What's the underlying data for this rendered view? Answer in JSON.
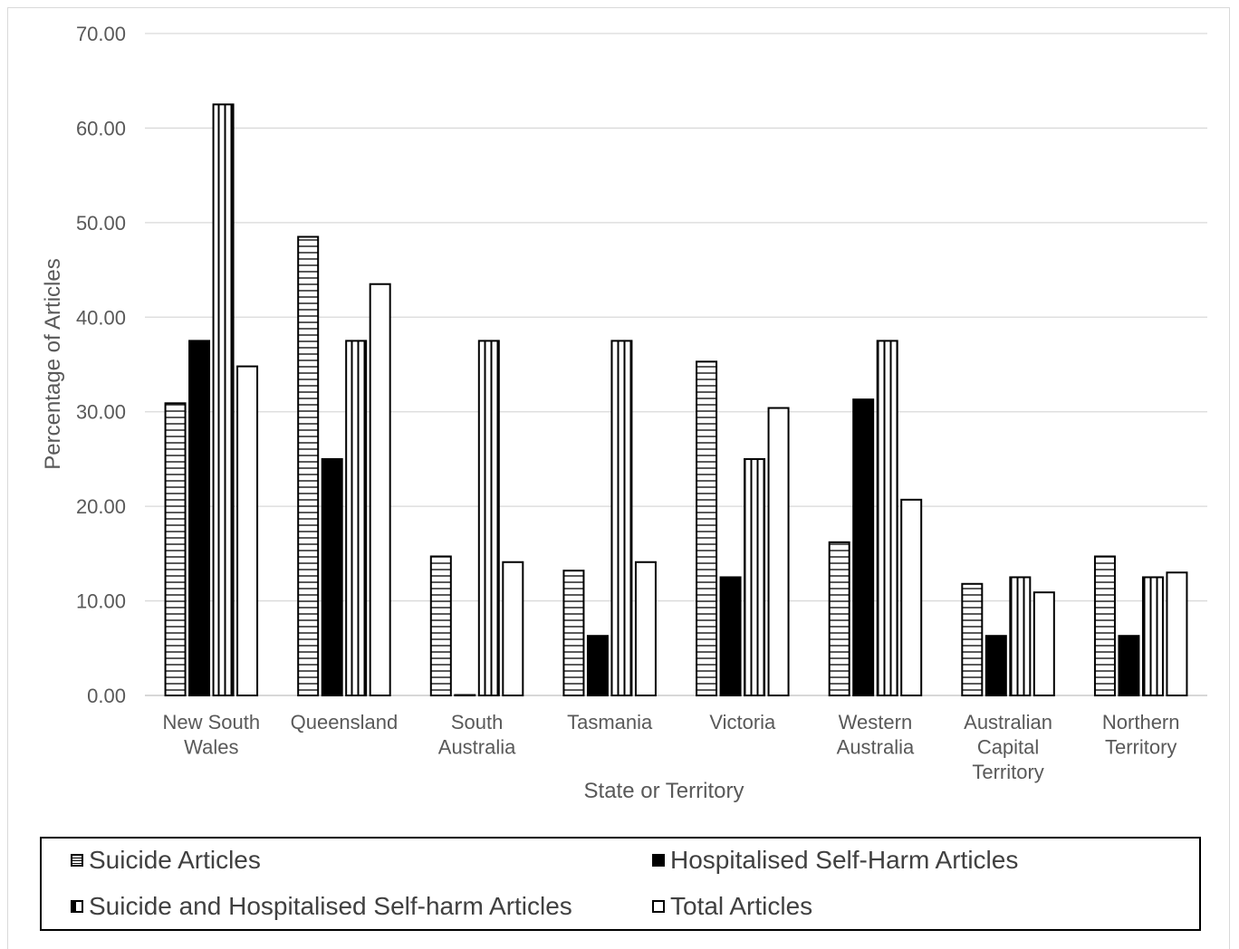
{
  "chart_data": {
    "type": "bar",
    "title": "",
    "xlabel": "State or Territory",
    "ylabel": "Percentage of Articles",
    "ylim": [
      0,
      70
    ],
    "yticks": [
      "0.00",
      "10.00",
      "20.00",
      "30.00",
      "40.00",
      "50.00",
      "60.00",
      "70.00"
    ],
    "grid": true,
    "legend_position": "bottom",
    "categories": [
      [
        "New South",
        "Wales"
      ],
      [
        "Queensland"
      ],
      [
        "South",
        "Australia"
      ],
      [
        "Tasmania"
      ],
      [
        "Victoria"
      ],
      [
        "Western",
        "Australia"
      ],
      [
        "Australian",
        "Capital",
        "Territory"
      ],
      [
        "Northern",
        "Territory"
      ]
    ],
    "series": [
      {
        "name": "Suicide Articles",
        "pattern": "hlines",
        "values": [
          30.9,
          48.5,
          14.7,
          13.2,
          35.3,
          16.2,
          11.8,
          14.7
        ]
      },
      {
        "name": "Hospitalised Self-Harm Articles",
        "pattern": "solid",
        "values": [
          37.5,
          25.0,
          0.0,
          6.3,
          12.5,
          31.3,
          6.3,
          6.3
        ]
      },
      {
        "name": "Suicide and Hospitalised Self-harm Articles",
        "pattern": "vlines",
        "values": [
          62.5,
          37.5,
          37.5,
          37.5,
          25.0,
          37.5,
          12.5,
          12.5
        ]
      },
      {
        "name": "Total Articles",
        "pattern": "white",
        "values": [
          34.8,
          43.5,
          14.1,
          14.1,
          30.4,
          20.7,
          10.9,
          13.0
        ]
      }
    ],
    "colors": {
      "bar_stroke": "#000000",
      "grid": "#d9d9d9",
      "text": "#595959"
    }
  }
}
